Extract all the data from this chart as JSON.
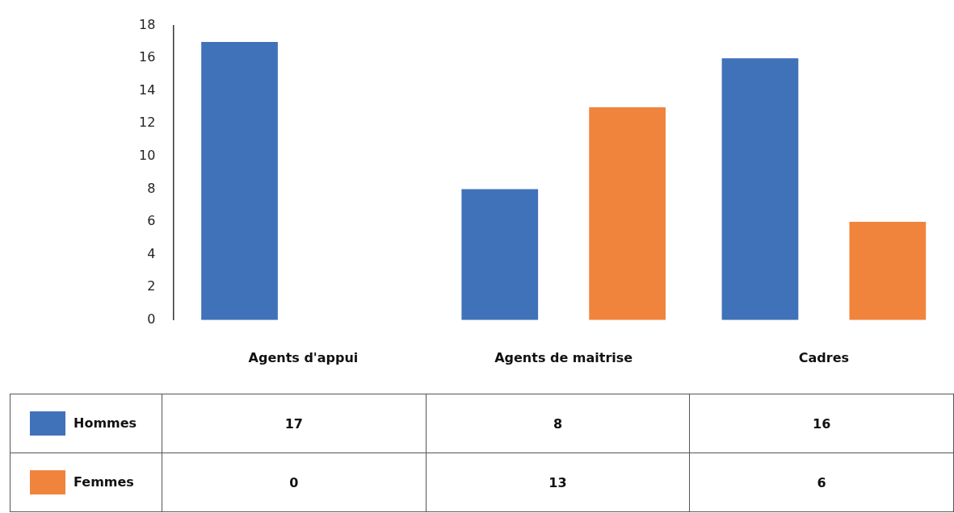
{
  "chart_data": {
    "type": "bar",
    "categories": [
      "Agents d'appui",
      "Agents de maitrise",
      "Cadres"
    ],
    "series": [
      {
        "name": "Hommes",
        "color": "#3f72b9",
        "values": [
          17,
          8,
          16
        ]
      },
      {
        "name": "Femmes",
        "color": "#f0843c",
        "values": [
          0,
          13,
          6
        ]
      }
    ],
    "ylim": [
      0,
      18
    ],
    "yticks": [
      0,
      2,
      4,
      6,
      8,
      10,
      12,
      14,
      16,
      18
    ],
    "grid": false,
    "legend": "bottom",
    "data_labels": true
  }
}
